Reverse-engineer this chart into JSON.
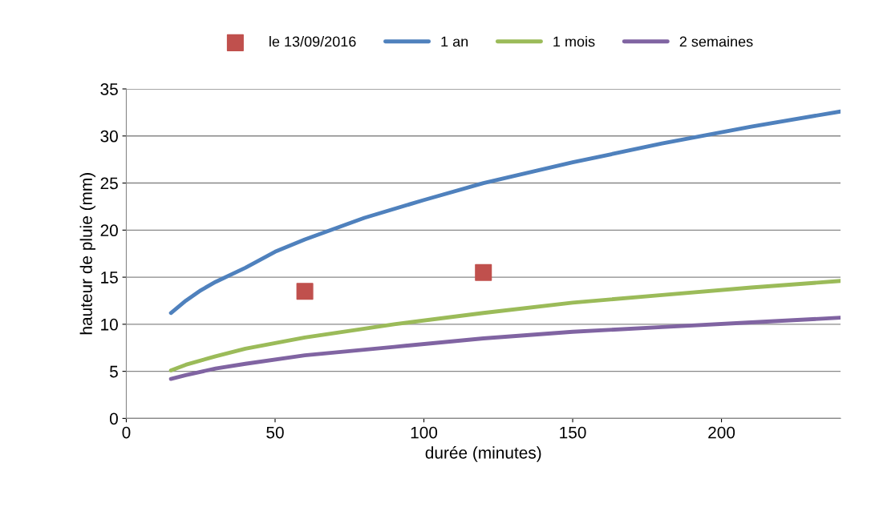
{
  "chart_data": {
    "type": "line",
    "xlabel": "durée (minutes)",
    "ylabel": "hauteur de pluie (mm)",
    "xlim": [
      0,
      240
    ],
    "xticks": [
      0,
      50,
      100,
      150,
      200
    ],
    "ylim": [
      0,
      35
    ],
    "yticks": [
      0,
      5,
      10,
      15,
      20,
      25,
      30,
      35
    ],
    "grid": "y",
    "legend": "top",
    "series": [
      {
        "name": "le 13/09/2016",
        "type": "scatter",
        "marker": "square",
        "color": "#c0504d",
        "x": [
          60,
          120
        ],
        "values": [
          13.5,
          15.5
        ]
      },
      {
        "name": "1 an",
        "color": "#4f81bd",
        "marker": "none",
        "x": [
          15,
          20,
          25,
          30,
          40,
          50,
          60,
          80,
          100,
          120,
          150,
          180,
          210,
          240
        ],
        "values": [
          11.2,
          12.5,
          13.6,
          14.5,
          16.0,
          17.7,
          19.0,
          21.3,
          23.2,
          25.0,
          27.2,
          29.2,
          31.0,
          32.6
        ]
      },
      {
        "name": "1 mois",
        "color": "#9bbb59",
        "marker": "none",
        "x": [
          15,
          20,
          30,
          40,
          60,
          90,
          120,
          150,
          180,
          210,
          240
        ],
        "values": [
          5.1,
          5.7,
          6.6,
          7.4,
          8.6,
          10.0,
          11.2,
          12.3,
          13.1,
          13.9,
          14.6
        ]
      },
      {
        "name": "2 semaines",
        "color": "#8064a2",
        "marker": "none",
        "x": [
          15,
          20,
          30,
          40,
          60,
          90,
          120,
          150,
          180,
          210,
          240
        ],
        "values": [
          4.2,
          4.6,
          5.3,
          5.8,
          6.7,
          7.6,
          8.5,
          9.2,
          9.7,
          10.2,
          10.7
        ]
      }
    ]
  }
}
